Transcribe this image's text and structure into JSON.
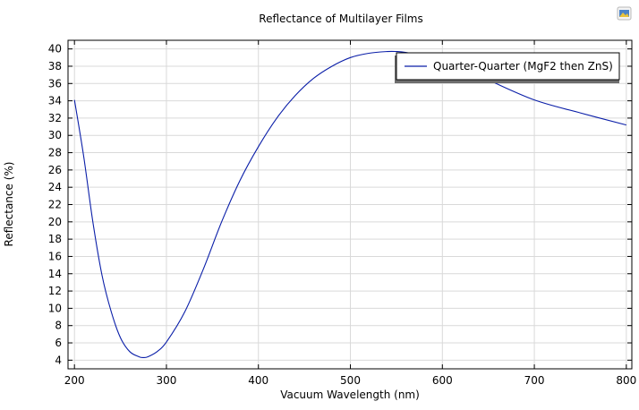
{
  "chart_data": {
    "type": "line",
    "title": "Reflectance of Multilayer Films",
    "xlabel": "Vacuum Wavelength (nm)",
    "ylabel": "Reflectance (%)",
    "xlim": [
      193,
      806
    ],
    "ylim": [
      3,
      41
    ],
    "xticks": [
      200,
      300,
      400,
      500,
      600,
      700,
      800
    ],
    "yticks": [
      4,
      6,
      8,
      10,
      12,
      14,
      16,
      18,
      20,
      22,
      24,
      26,
      28,
      30,
      32,
      34,
      36,
      38,
      40
    ],
    "grid": true,
    "legend_position": "top-right",
    "series": [
      {
        "name": "Quarter-Quarter (MgF2 then ZnS)",
        "color": "#0a1ea8",
        "x": [
          200,
          210,
          220,
          230,
          240,
          250,
          260,
          270,
          275,
          280,
          290,
          300,
          320,
          340,
          360,
          380,
          400,
          420,
          440,
          460,
          480,
          500,
          520,
          540,
          550,
          560,
          580,
          600,
          620,
          650,
          700,
          750,
          800
        ],
        "y": [
          34.1,
          27.6,
          20.0,
          13.8,
          9.6,
          6.6,
          5.0,
          4.4,
          4.3,
          4.4,
          5.0,
          6.1,
          9.6,
          14.5,
          20.0,
          24.8,
          28.7,
          32.0,
          34.6,
          36.6,
          38.0,
          39.0,
          39.5,
          39.7,
          39.7,
          39.6,
          39.2,
          38.6,
          37.8,
          36.4,
          34.1,
          32.6,
          31.2
        ]
      }
    ]
  },
  "toolbar": {
    "icon": "export-image-icon"
  }
}
